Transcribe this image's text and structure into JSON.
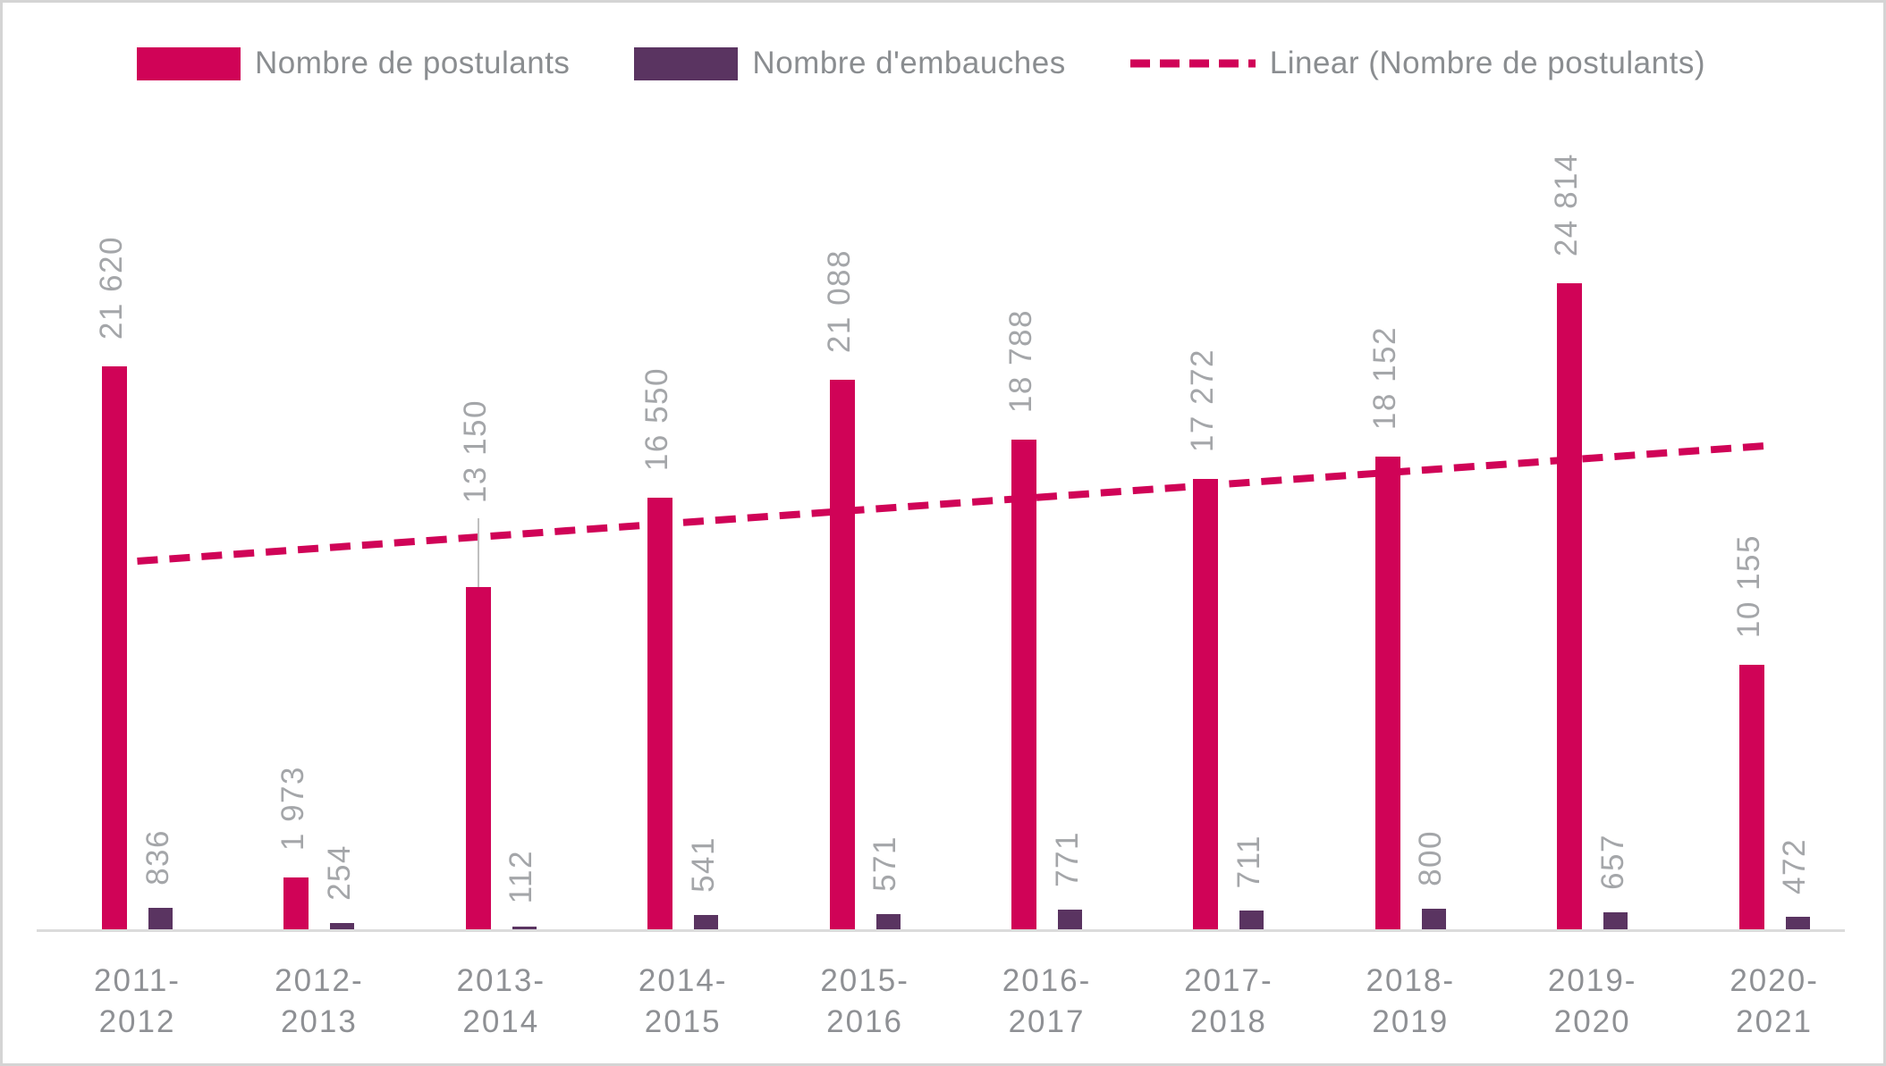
{
  "legend": {
    "items": [
      {
        "label": "Nombre de postulants",
        "type": "swatch",
        "color": "#d00357"
      },
      {
        "label": "Nombre d'embauches",
        "type": "swatch",
        "color": "#5a3461"
      },
      {
        "label": "Linear (Nombre de postulants)",
        "type": "dash",
        "color": "#d00357"
      }
    ]
  },
  "chart_data": {
    "type": "bar",
    "title": "",
    "xlabel": "",
    "ylabel": "",
    "ylim": [
      0,
      25500
    ],
    "grid": false,
    "y_axis_hidden": true,
    "legend_position": "top",
    "categories": [
      "2011-2012",
      "2012-2013",
      "2013-2014",
      "2014-2015",
      "2015-2016",
      "2016-2017",
      "2017-2018",
      "2018-2019",
      "2019-2020",
      "2020-2021"
    ],
    "category_tick_lines": [
      [
        "2011-",
        "2012"
      ],
      [
        "2012-",
        "2013"
      ],
      [
        "2013-",
        "2014"
      ],
      [
        "2014-",
        "2015"
      ],
      [
        "2015-",
        "2016"
      ],
      [
        "2016-",
        "2017"
      ],
      [
        "2017-",
        "2018"
      ],
      [
        "2018-",
        "2019"
      ],
      [
        "2019-",
        "2020"
      ],
      [
        "2020-",
        "2021"
      ]
    ],
    "series": [
      {
        "name": "Nombre de postulants",
        "color": "#d00357",
        "values": [
          21620,
          1973,
          13150,
          16550,
          21088,
          18788,
          17272,
          18152,
          24814,
          10155
        ],
        "labels": [
          "21 620",
          "1 973",
          "13 150",
          "16 550",
          "21 088",
          "18 788",
          "17 272",
          "18 152",
          "24 814",
          "10 155"
        ]
      },
      {
        "name": "Nombre d'embauches",
        "color": "#5a3461",
        "values": [
          836,
          254,
          112,
          541,
          571,
          771,
          711,
          800,
          657,
          472
        ],
        "labels": [
          "836",
          "254",
          "112",
          "541",
          "571",
          "771",
          "711",
          "800",
          "657",
          "472"
        ]
      }
    ],
    "trendline": {
      "name": "Linear (Nombre de postulants)",
      "series": "Nombre de postulants",
      "style": "dashed",
      "color": "#d00357",
      "start_value": 14131,
      "end_value": 18581
    },
    "label_style": {
      "rotation": -90,
      "color": "#a4a6a9"
    },
    "callout": {
      "category_index": 2,
      "series": "Nombre de postulants",
      "note": "label raised above trendline with gray leader line to bar top"
    }
  }
}
